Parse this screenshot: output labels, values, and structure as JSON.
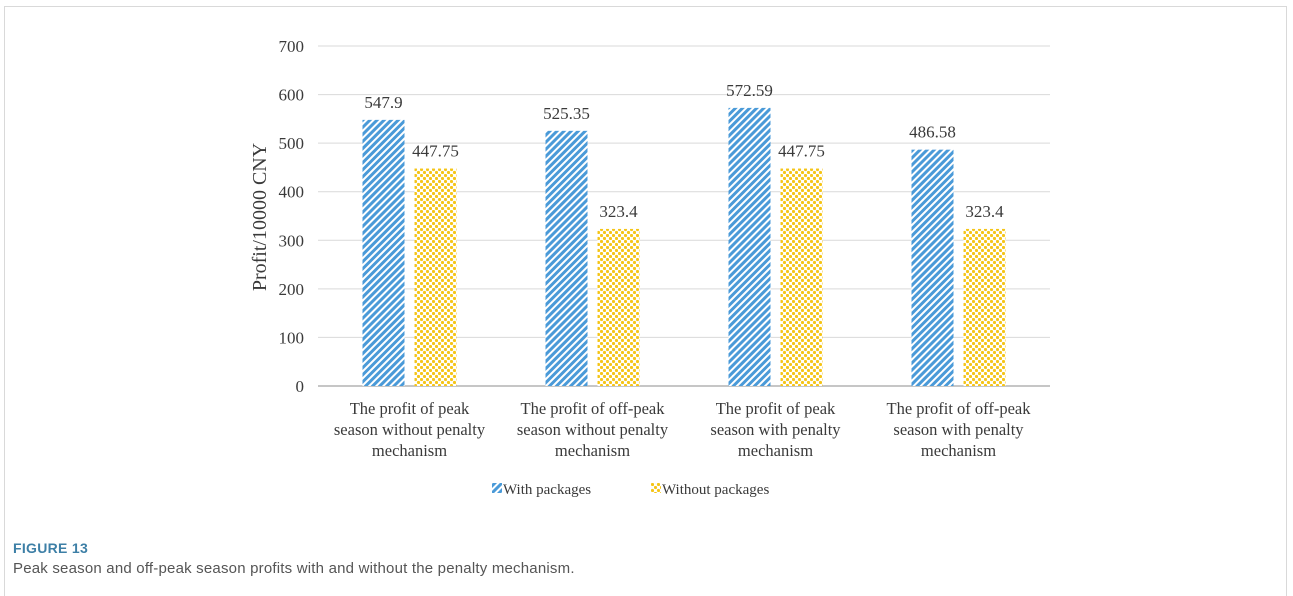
{
  "caption": {
    "label": "FIGURE 13",
    "text": "Peak season and off-peak season profits with and without the penalty mechanism."
  },
  "chart_data": {
    "type": "bar",
    "ylabel": "Profit/10000 CNY",
    "ylim": [
      0,
      700
    ],
    "yticks": [
      0,
      100,
      200,
      300,
      400,
      500,
      600,
      700
    ],
    "grid": true,
    "legend_position": "bottom",
    "categories": [
      [
        "The profit of peak",
        "season without penalty",
        "mechanism"
      ],
      [
        "The profit of off-peak",
        "season without penalty",
        "mechanism"
      ],
      [
        "The profit of peak",
        "season with penalty",
        "mechanism"
      ],
      [
        "The profit of off-peak",
        "season with penalty",
        "mechanism"
      ]
    ],
    "series": [
      {
        "name": "With packages",
        "values": [
          547.9,
          525.35,
          572.59,
          486.58
        ],
        "color": "#4a9ad8",
        "pattern": "diagonal-stripes"
      },
      {
        "name": "Without packages",
        "values": [
          447.75,
          323.4,
          447.75,
          323.4
        ],
        "color": "#f5c518",
        "pattern": "dots"
      }
    ],
    "data_labels": [
      [
        "547.9",
        "525.35",
        "572.59",
        "486.58"
      ],
      [
        "447.75",
        "323.4",
        "447.75",
        "323.4"
      ]
    ]
  }
}
